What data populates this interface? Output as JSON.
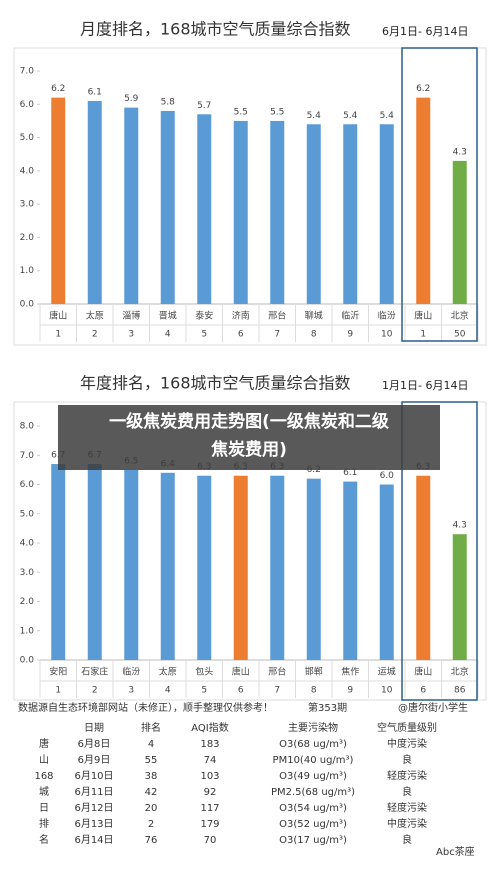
{
  "chart_data": [
    {
      "type": "bar",
      "title": "月度排名，168城市空气质量综合指数",
      "subtitle": "6月1日- 6月14日",
      "categories": [
        "唐山",
        "太原",
        "淄博",
        "晋城",
        "泰安",
        "济南",
        "邢台",
        "聊城",
        "临沂",
        "临汾",
        "唐山",
        "北京"
      ],
      "values": [
        6.2,
        6.1,
        5.9,
        5.8,
        5.7,
        5.5,
        5.5,
        5.4,
        5.4,
        5.4,
        6.2,
        4.3
      ],
      "ranks": [
        1,
        2,
        3,
        4,
        5,
        6,
        7,
        8,
        9,
        10,
        1,
        50
      ],
      "colors": [
        "#ed7d31",
        "#5b9bd5",
        "#5b9bd5",
        "#5b9bd5",
        "#5b9bd5",
        "#5b9bd5",
        "#5b9bd5",
        "#5b9bd5",
        "#5b9bd5",
        "#5b9bd5",
        "#ed7d31",
        "#70ad47"
      ],
      "ylim": [
        0,
        7
      ],
      "yticks": [
        {
          "value": 0,
          "label": "0.0"
        },
        {
          "value": 1,
          "label": "1.0"
        },
        {
          "value": 2,
          "label": "2.0"
        },
        {
          "value": 3,
          "label": "3.0"
        },
        {
          "value": 4,
          "label": "4.0"
        },
        {
          "value": 5,
          "label": "5.0"
        },
        {
          "value": 6,
          "label": "6.0"
        },
        {
          "value": 7,
          "label": "7.0"
        }
      ]
    },
    {
      "type": "bar",
      "title": "年度排名，168城市空气质量综合指数",
      "subtitle": "1月1日- 6月14日",
      "categories": [
        "安阳",
        "石家庄",
        "临汾",
        "太原",
        "包头",
        "唐山",
        "邢台",
        "邯郸",
        "焦作",
        "运城",
        "唐山",
        "北京"
      ],
      "values": [
        6.7,
        6.7,
        6.5,
        6.4,
        6.3,
        6.3,
        6.3,
        6.2,
        6.1,
        6.0,
        6.3,
        4.3
      ],
      "value_labels": [
        "6.7",
        "6.7",
        "6.5",
        "6.4",
        "6.3",
        "6.3",
        "6.3",
        "6.2",
        "6.1",
        "6.0",
        "6.3",
        "4.3"
      ],
      "ranks": [
        1,
        2,
        3,
        4,
        5,
        6,
        7,
        8,
        9,
        10,
        6,
        86
      ],
      "colors": [
        "#5b9bd5",
        "#5b9bd5",
        "#5b9bd5",
        "#5b9bd5",
        "#5b9bd5",
        "#ed7d31",
        "#5b9bd5",
        "#5b9bd5",
        "#5b9bd5",
        "#5b9bd5",
        "#ed7d31",
        "#70ad47"
      ],
      "ylim": [
        0,
        8
      ],
      "yticks": [
        {
          "value": 0,
          "label": "0.0"
        },
        {
          "value": 1,
          "label": "1.0"
        },
        {
          "value": 2,
          "label": "2.0"
        },
        {
          "value": 3,
          "label": "3.0"
        },
        {
          "value": 4,
          "label": "4.0"
        },
        {
          "value": 5,
          "label": "5.0"
        },
        {
          "value": 6,
          "label": "6.0"
        },
        {
          "value": 7,
          "label": "7.0"
        },
        {
          "value": 8,
          "label": "8.0"
        }
      ]
    }
  ],
  "overlay": {
    "line1": "一级焦炭费用走势图(一级焦炭和二级",
    "line2": "焦炭费用)"
  },
  "footer": {
    "source": "数据源自生态环境部网站（未修正），顺手整理仅供参考！",
    "issue": "第353期",
    "author": "@唐尔街小学生"
  },
  "table": {
    "side": [
      "唐",
      "山",
      "168",
      "城",
      "日",
      "排",
      "名"
    ],
    "header": [
      "日期",
      "排名",
      "AQI指数",
      "主要污染物",
      "空气质量级别"
    ],
    "rows": [
      [
        "6月8日",
        4,
        183,
        "O3(68 ug/m³)",
        "中度污染"
      ],
      [
        "6月9日",
        55,
        74,
        "PM10(40 ug/m³)",
        "良"
      ],
      [
        "6月10日",
        38,
        103,
        "O3(49 ug/m³)",
        "轻度污染"
      ],
      [
        "6月11日",
        42,
        92,
        "PM2.5(68 ug/m³)",
        "良"
      ],
      [
        "6月12日",
        20,
        117,
        "O3(54 ug/m³)",
        "轻度污染"
      ],
      [
        "6月13日",
        2,
        179,
        "O3(52 ug/m³)",
        "中度污染"
      ],
      [
        "6月14日",
        76,
        70,
        "O3(17 ug/m³)",
        "良"
      ]
    ]
  },
  "watermark": "Abc茶座"
}
